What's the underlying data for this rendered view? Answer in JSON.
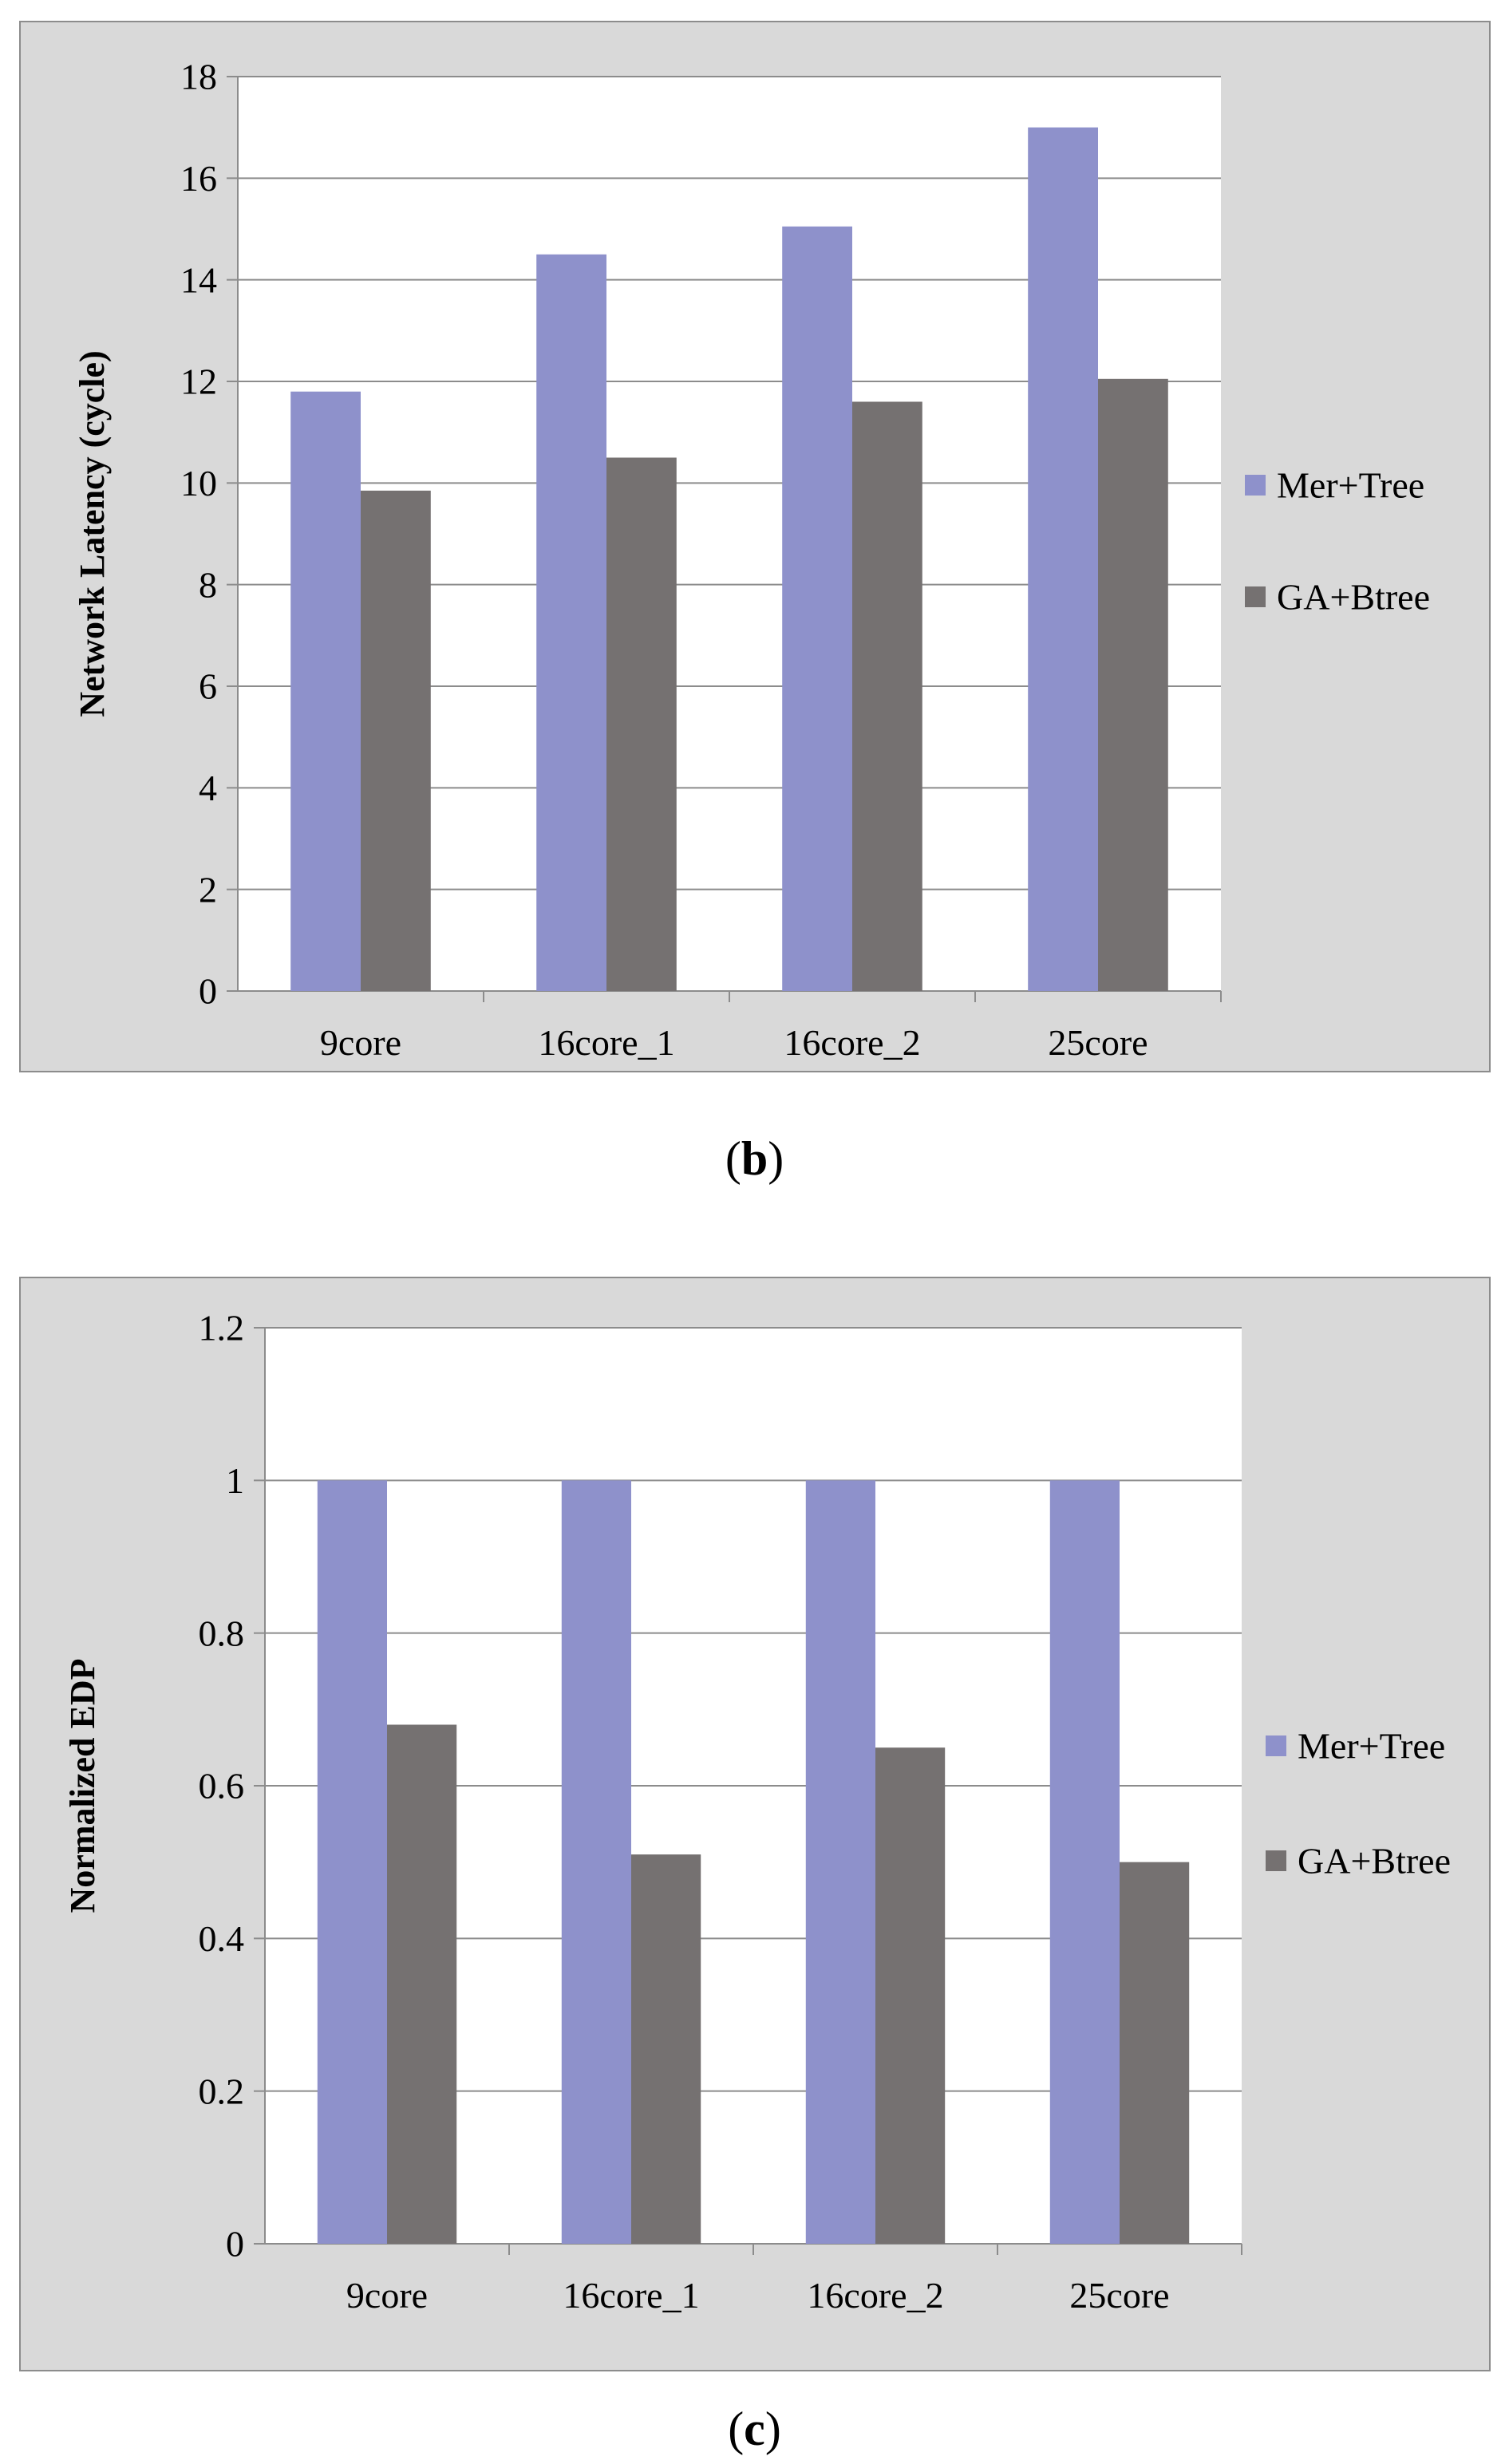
{
  "captions": {
    "b": {
      "open": "(",
      "letter": "b",
      "close": ")"
    },
    "c": {
      "open": "(",
      "letter": "c",
      "close": ")"
    }
  },
  "colors": {
    "frame_bg": "#d9d9d9",
    "plot_bg": "#ffffff",
    "grid": "#8c8c8c",
    "mer_tree": "#8e91cb",
    "ga_btree": "#757171"
  },
  "chart_data": [
    {
      "type": "bar",
      "title": "",
      "xlabel": "",
      "ylabel": "Network Latency (cycle)",
      "categories": [
        "9core",
        "16core_1",
        "16core_2",
        "25core"
      ],
      "ylim": [
        0,
        18
      ],
      "yticks": [
        "0",
        "2",
        "4",
        "6",
        "8",
        "10",
        "12",
        "14",
        "16",
        "18"
      ],
      "grid": true,
      "legend_position": "right",
      "series": [
        {
          "name": "Mer+Tree",
          "values": [
            11.8,
            14.5,
            15.05,
            17.0
          ]
        },
        {
          "name": "GA+Btree",
          "values": [
            9.85,
            10.5,
            11.6,
            12.05
          ]
        }
      ]
    },
    {
      "type": "bar",
      "title": "",
      "xlabel": "",
      "ylabel": "Normalized EDP",
      "categories": [
        "9core",
        "16core_1",
        "16core_2",
        "25core"
      ],
      "ylim": [
        0,
        1.2
      ],
      "yticks": [
        "0",
        "0.2",
        "0.4",
        "0.6",
        "0.8",
        "1",
        "1.2"
      ],
      "grid": true,
      "legend_position": "right",
      "series": [
        {
          "name": "Mer+Tree",
          "values": [
            1.0,
            1.0,
            1.0,
            1.0
          ]
        },
        {
          "name": "GA+Btree",
          "values": [
            0.68,
            0.51,
            0.65,
            0.5
          ]
        }
      ]
    }
  ]
}
